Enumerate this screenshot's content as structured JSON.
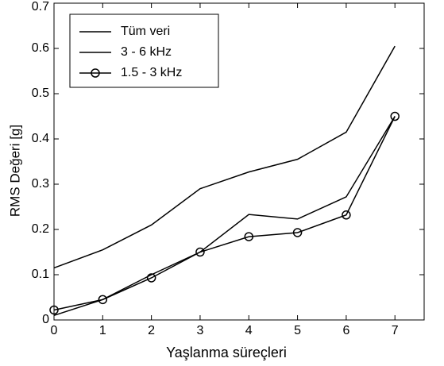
{
  "chart_data": {
    "type": "line",
    "xlabel": "Yaşlanma süreçleri",
    "ylabel": "RMS Değeri [g]",
    "x": [
      0,
      1,
      2,
      3,
      4,
      5,
      6,
      7
    ],
    "series": [
      {
        "name": "Tüm veri",
        "color": "#000000",
        "values": [
          0.115,
          0.155,
          0.21,
          0.29,
          0.327,
          0.355,
          0.415,
          0.605
        ]
      },
      {
        "name": "3 - 6 kHz",
        "color": "#000000",
        "values": [
          0.01,
          0.045,
          0.1,
          0.15,
          0.233,
          0.223,
          0.272,
          0.45
        ]
      },
      {
        "name": "1.5 - 3 kHz",
        "color": "#000000",
        "marker": "circle",
        "values": [
          0.022,
          0.045,
          0.093,
          0.15,
          0.184,
          0.193,
          0.232,
          0.45
        ]
      }
    ],
    "xlim": [
      0,
      7.6
    ],
    "xticks": [
      0,
      1,
      2,
      3,
      4,
      5,
      6,
      7
    ],
    "ylim": [
      0,
      0.7
    ],
    "yticks": [
      0,
      0.1,
      0.2,
      0.3,
      0.4,
      0.5,
      0.6,
      0.7
    ],
    "legend": "upper-left",
    "grid": false
  }
}
